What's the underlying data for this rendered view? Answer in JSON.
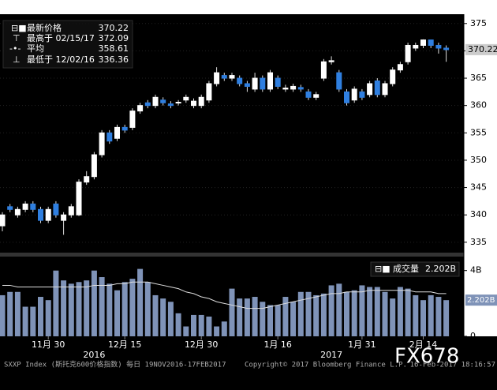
{
  "chart_data": {
    "type": "candlestick",
    "legend": [
      {
        "name": "最新价格",
        "value": 370.22
      },
      {
        "name": "最高于 02/15/17",
        "value": 372.09
      },
      {
        "name": "平均",
        "value": 358.61
      },
      {
        "name": "最低于 12/02/16",
        "value": 336.36
      }
    ],
    "categories": [
      null,
      null,
      null,
      null,
      null,
      null,
      "11月 30",
      null,
      null,
      null,
      null,
      null,
      null,
      null,
      null,
      null,
      "12月 15",
      null,
      null,
      null,
      null,
      null,
      null,
      null,
      null,
      null,
      "12月 30",
      null,
      null,
      null,
      null,
      null,
      null,
      null,
      null,
      null,
      "1月 16",
      null,
      null,
      null,
      null,
      null,
      null,
      null,
      null,
      null,
      null,
      "1月 31",
      null,
      null,
      null,
      null,
      null,
      null,
      null,
      "2月 14",
      null,
      null,
      null
    ],
    "years": [
      {
        "label": "2016",
        "index": 12
      },
      {
        "label": "2017",
        "index": 43
      }
    ],
    "open": [
      338,
      341.5,
      340,
      341,
      342,
      341,
      339,
      342,
      339,
      340,
      340,
      346,
      347,
      351,
      355,
      354,
      356,
      356,
      359,
      360.5,
      360,
      361,
      360.3,
      360.5,
      361,
      360,
      360,
      361,
      364,
      365.5,
      365,
      365,
      364,
      363,
      365,
      363,
      365,
      363,
      363,
      363.3,
      362.5,
      361.5,
      365,
      368,
      366,
      362.5,
      361,
      362.5,
      362,
      364.5,
      362,
      364,
      366.5,
      368,
      370.5,
      371,
      372,
      371,
      370.5
    ],
    "high": [
      340.5,
      342,
      341.5,
      342.5,
      342.5,
      341.5,
      341.5,
      342.5,
      340.5,
      342,
      346.5,
      348,
      351.5,
      355.5,
      355.5,
      356.5,
      356.5,
      359.5,
      360.5,
      361,
      362,
      361.5,
      360.8,
      361,
      362,
      361.3,
      362,
      364.5,
      367,
      366,
      366,
      365.5,
      364.5,
      366,
      365.5,
      366.5,
      365.5,
      363.8,
      364,
      363.8,
      363,
      362.5,
      368.5,
      369,
      366.5,
      363,
      363.5,
      363,
      364.5,
      365,
      364.5,
      367,
      368,
      371.5,
      371.5,
      372.09,
      372.05,
      371.5,
      371
    ],
    "low": [
      337,
      340.5,
      339.5,
      340.5,
      340.5,
      338.5,
      338.5,
      339.5,
      336.36,
      339.5,
      339.8,
      345.5,
      346.5,
      350.5,
      353,
      353.5,
      355,
      355.5,
      358.5,
      359.5,
      359.5,
      360,
      359.5,
      360,
      360.5,
      359.5,
      359.5,
      360.5,
      363.5,
      364.5,
      364.5,
      363.5,
      362.5,
      362.5,
      362.5,
      362.5,
      363,
      362.5,
      362.5,
      362.5,
      361,
      361,
      364.5,
      367.5,
      362.5,
      360,
      360.5,
      361,
      361.5,
      361.5,
      361.5,
      363.5,
      366,
      367.5,
      370,
      370.5,
      370.5,
      369.5,
      368
    ],
    "close": [
      340,
      341,
      341,
      342,
      341,
      339,
      341,
      340,
      340,
      341.5,
      346,
      347,
      351,
      355,
      353.5,
      356,
      355.5,
      359,
      360,
      360,
      361.5,
      360.5,
      360,
      360.6,
      361.5,
      360.8,
      361.5,
      364,
      366,
      365,
      365.5,
      364,
      363.5,
      365,
      363,
      366,
      363.5,
      363.2,
      363.5,
      363,
      361.5,
      362,
      368,
      368.2,
      363,
      360.5,
      363,
      361.5,
      364,
      362,
      364,
      366.5,
      367.5,
      371,
      371,
      372,
      371,
      370.5,
      370.22
    ],
    "up_color": "#ffffff",
    "down_color": "#2f7fe0",
    "ylim": [
      333.1,
      376.7
    ],
    "yticks": [
      335,
      340,
      345,
      350,
      355,
      360,
      365,
      370,
      375
    ],
    "last_price": 370.22,
    "volume": {
      "name": "成交量",
      "last": 2.202,
      "last_label": "2.202B",
      "color": "#7f93b8",
      "values": [
        2.5,
        2.7,
        2.7,
        1.8,
        1.8,
        2.4,
        2.2,
        4.0,
        3.4,
        3.2,
        3.3,
        3.4,
        4.0,
        3.6,
        3.2,
        2.8,
        3.3,
        3.5,
        4.1,
        3.3,
        2.5,
        2.3,
        2.1,
        1.4,
        0.6,
        1.3,
        1.3,
        1.2,
        0.6,
        0.9,
        2.9,
        2.3,
        2.3,
        2.4,
        2.1,
        1.9,
        1.9,
        2.4,
        2.1,
        2.7,
        2.7,
        2.5,
        2.6,
        3.1,
        3.2,
        2.7,
        2.8,
        3.1,
        3.0,
        3.0,
        2.7,
        2.3,
        3.0,
        2.9,
        2.5,
        2.2,
        2.5,
        2.4,
        2.2
      ],
      "average": [
        3.1,
        3.1,
        3.0,
        3.0,
        3.0,
        3.0,
        3.0,
        3.0,
        3.0,
        3.0,
        3.0,
        3.0,
        3.1,
        3.1,
        3.1,
        3.2,
        3.2,
        3.3,
        3.3,
        3.3,
        3.2,
        3.1,
        3.0,
        2.9,
        2.7,
        2.6,
        2.4,
        2.3,
        2.1,
        2.0,
        1.9,
        1.8,
        1.7,
        1.7,
        1.7,
        1.8,
        1.9,
        2.0,
        2.1,
        2.2,
        2.3,
        2.4,
        2.5,
        2.6,
        2.6,
        2.7,
        2.7,
        2.7,
        2.8,
        2.8,
        2.8,
        2.8,
        2.8,
        2.8,
        2.7,
        2.7,
        2.7,
        2.6,
        2.6
      ],
      "ylim": [
        0,
        4.85
      ],
      "yticks": [
        0,
        {
          "value": 4,
          "label": "4B"
        }
      ]
    },
    "footer": "SXXP Index (斯托克600价格指数)  每日 19NOV2016-17FEB2017",
    "copyright": "Copyright© 2017 Bloomberg Finance L.P.",
    "timestamp": "16-Feb-2017 18:16:57",
    "watermark": "FX678"
  }
}
